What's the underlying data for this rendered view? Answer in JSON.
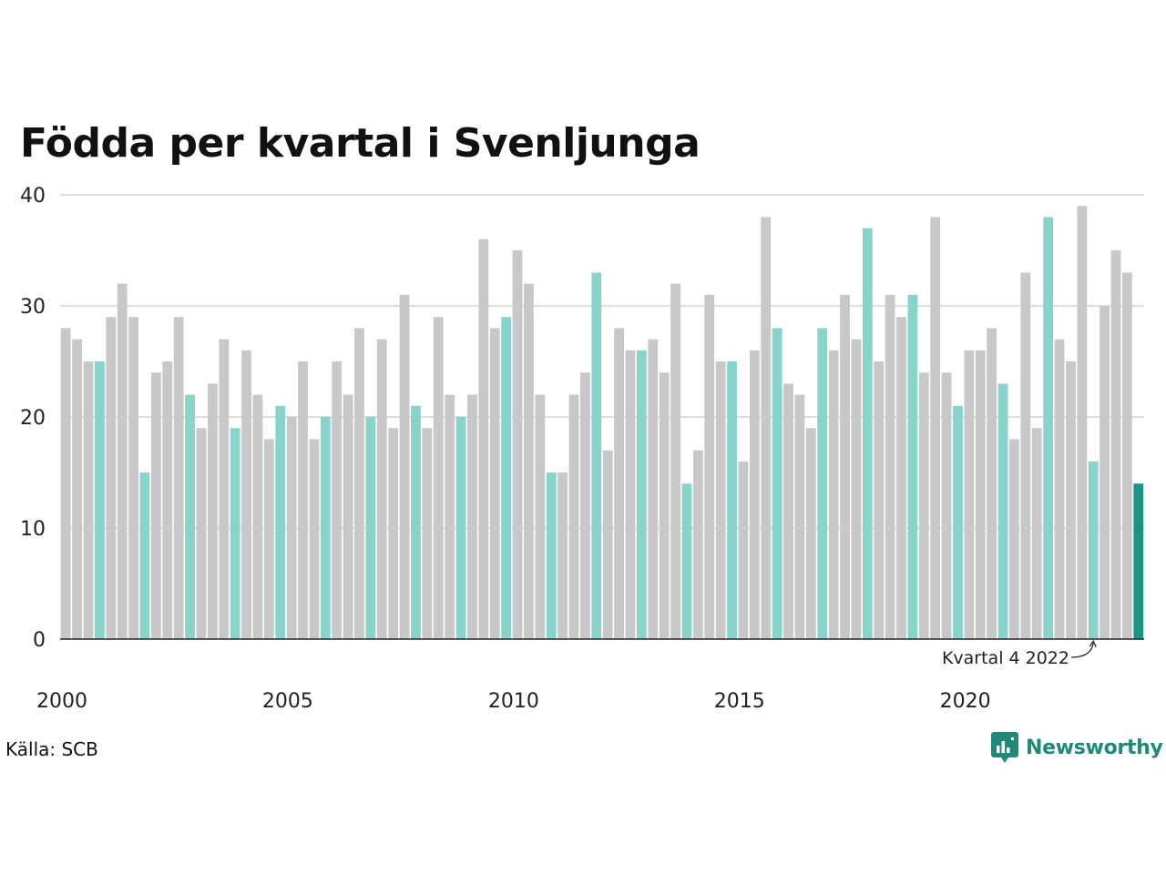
{
  "chart_data": {
    "type": "bar",
    "title": "Födda per kvartal i Svenljunga",
    "source": "Källa: SCB",
    "brand": "Newsworthy",
    "annotation": "Kvartal 4 2022",
    "ylim": [
      0,
      40
    ],
    "y_ticks": [
      0,
      10,
      20,
      30,
      40
    ],
    "x_tick_labels": [
      "2000",
      "2005",
      "2010",
      "2015",
      "2020"
    ],
    "x_start_year": 2000,
    "colors": {
      "default": "#c8c8c8",
      "same_quarter": "#88d4cb",
      "highlight": "#1a9484",
      "grid": "#dddddd",
      "axis": "#222222"
    },
    "values": [
      28,
      27,
      25,
      25,
      29,
      32,
      29,
      15,
      24,
      25,
      29,
      22,
      19,
      23,
      27,
      19,
      26,
      22,
      18,
      21,
      20,
      25,
      18,
      20,
      25,
      22,
      28,
      20,
      27,
      19,
      31,
      21,
      19,
      29,
      22,
      20,
      22,
      36,
      28,
      29,
      35,
      32,
      22,
      15,
      15,
      22,
      24,
      33,
      17,
      28,
      26,
      26,
      27,
      24,
      32,
      14,
      17,
      31,
      25,
      25,
      16,
      26,
      38,
      28,
      23,
      22,
      19,
      28,
      26,
      31,
      27,
      37,
      25,
      31,
      29,
      31,
      24,
      38,
      24,
      21,
      26,
      26,
      28,
      23,
      18,
      33,
      19,
      38,
      27,
      25,
      39,
      16,
      30,
      35,
      33,
      14
    ]
  }
}
